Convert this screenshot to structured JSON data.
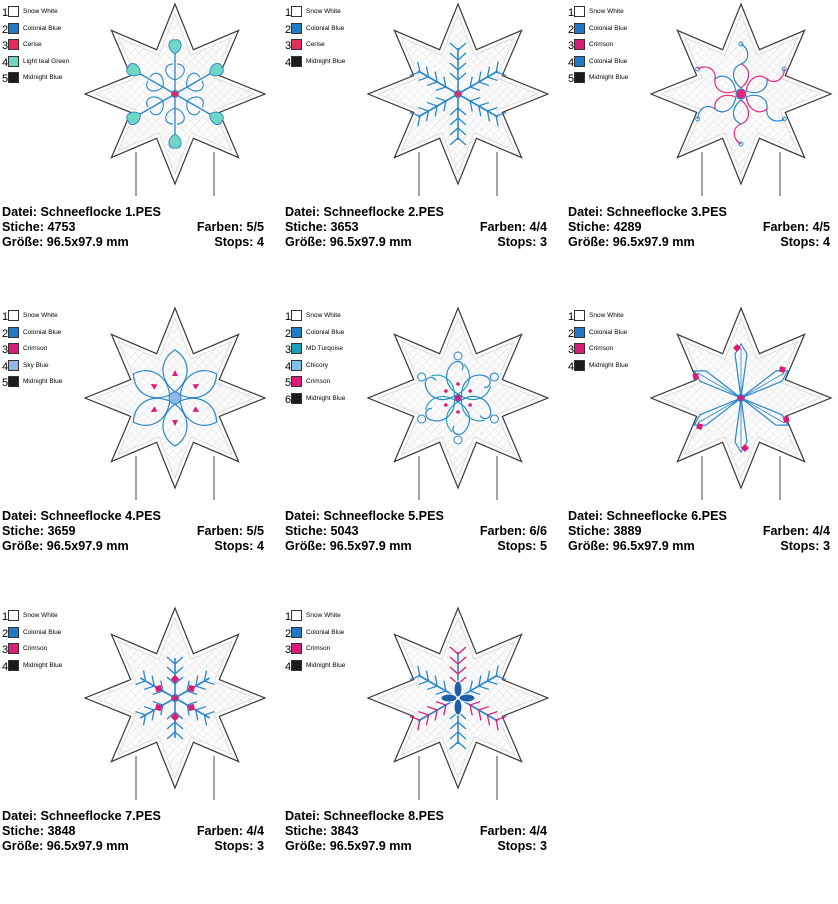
{
  "designs": [
    {
      "file": "Datei: Schneeflocke 1.PES",
      "stitches": "Stiche: 4753",
      "colors_count": "Farben: 5/5",
      "size": "Größe: 96.5x97.9 mm",
      "stops": "Stops: 4",
      "motif": "snowflake-hearts",
      "accent": "#e8246e",
      "thread_colors": [
        {
          "num": "1",
          "name": "Snow White",
          "hex": "#ffffff"
        },
        {
          "num": "2",
          "name": "Colonial Blue",
          "hex": "#1f78c8"
        },
        {
          "num": "3",
          "name": "Cerise",
          "hex": "#e32e5a"
        },
        {
          "num": "4",
          "name": "Light teal Green",
          "hex": "#6fd6c4"
        },
        {
          "num": "5",
          "name": "Midnight Blue",
          "hex": "#1e1a1c"
        }
      ]
    },
    {
      "file": "Datei: Schneeflocke 2.PES",
      "stitches": "Stiche: 3653",
      "colors_count": "Farben: 4/4",
      "size": "Größe: 96.5x97.9 mm",
      "stops": "Stops: 3",
      "motif": "snowflake-simple",
      "accent": "#e32e5a",
      "thread_colors": [
        {
          "num": "1",
          "name": "Snow White",
          "hex": "#ffffff"
        },
        {
          "num": "2",
          "name": "Colonial Blue",
          "hex": "#1f78c8"
        },
        {
          "num": "3",
          "name": "Cerise",
          "hex": "#e32e5a"
        },
        {
          "num": "4",
          "name": "Midnight Blue",
          "hex": "#1e1a1c"
        }
      ]
    },
    {
      "file": "Datei: Schneeflocke 3.PES",
      "stitches": "Stiche: 4289",
      "colors_count": "Farben: 4/5",
      "size": "Größe: 96.5x97.9 mm",
      "stops": "Stops: 4",
      "motif": "snowflake-swirl",
      "accent": "#e8247c",
      "thread_colors": [
        {
          "num": "1",
          "name": "Snow White",
          "hex": "#ffffff"
        },
        {
          "num": "2",
          "name": "Colonial Blue",
          "hex": "#1f78c8"
        },
        {
          "num": "3",
          "name": "Crimson",
          "hex": "#d81e78"
        },
        {
          "num": "4",
          "name": "Colonial Blue",
          "hex": "#1f78c8"
        },
        {
          "num": "5",
          "name": "Midnight Blue",
          "hex": "#1e1a1c"
        }
      ]
    },
    {
      "file": "Datei: Schneeflocke 4.PES",
      "stitches": "Stiche: 3659",
      "colors_count": "Farben: 5/5",
      "size": "Größe: 96.5x97.9 mm",
      "stops": "Stops: 4",
      "motif": "snowflake-petals",
      "accent": "#d81e78",
      "thread_colors": [
        {
          "num": "1",
          "name": "Snow White",
          "hex": "#ffffff"
        },
        {
          "num": "2",
          "name": "Colonial Blue",
          "hex": "#1f78c8"
        },
        {
          "num": "3",
          "name": "Crimson",
          "hex": "#d81e78"
        },
        {
          "num": "4",
          "name": "Sky Blue",
          "hex": "#8fb8e6"
        },
        {
          "num": "5",
          "name": "Midnight Blue",
          "hex": "#1e1a1c"
        }
      ]
    },
    {
      "file": "Datei: Schneeflocke 5.PES",
      "stitches": "Stiche: 5043",
      "colors_count": "Farben: 6/6",
      "size": "Größe: 96.5x97.9 mm",
      "stops": "Stops: 5",
      "motif": "snowflake-lace",
      "accent": "#d81e78",
      "thread_colors": [
        {
          "num": "1",
          "name": "Snow White",
          "hex": "#ffffff"
        },
        {
          "num": "2",
          "name": "Colonial Blue",
          "hex": "#1f78c8"
        },
        {
          "num": "3",
          "name": "MD Turqoise",
          "hex": "#1aa0b4"
        },
        {
          "num": "4",
          "name": "Chicory",
          "hex": "#7ec3e8"
        },
        {
          "num": "5",
          "name": "Crimson",
          "hex": "#d81e78"
        },
        {
          "num": "6",
          "name": "Midnight Blue",
          "hex": "#1e1a1c"
        }
      ]
    },
    {
      "file": "Datei: Schneeflocke 6.PES",
      "stitches": "Stiche: 3889",
      "colors_count": "Farben: 4/4",
      "size": "Größe: 96.5x97.9 mm",
      "stops": "Stops: 3",
      "motif": "snowflake-star",
      "accent": "#d81e78",
      "thread_colors": [
        {
          "num": "1",
          "name": "Snow White",
          "hex": "#ffffff"
        },
        {
          "num": "2",
          "name": "Colonial Blue",
          "hex": "#1f78c8"
        },
        {
          "num": "3",
          "name": "Crimson",
          "hex": "#d81e78"
        },
        {
          "num": "4",
          "name": "Midnight Blue",
          "hex": "#1e1a1c"
        }
      ]
    },
    {
      "file": "Datei: Schneeflocke 7.PES",
      "stitches": "Stiche: 3848",
      "colors_count": "Farben: 4/4",
      "size": "Größe: 96.5x97.9 mm",
      "stops": "Stops: 3",
      "motif": "snowflake-fern",
      "accent": "#d81e78",
      "thread_colors": [
        {
          "num": "1",
          "name": "Snow White",
          "hex": "#ffffff"
        },
        {
          "num": "2",
          "name": "Colonial Blue",
          "hex": "#1f78c8"
        },
        {
          "num": "3",
          "name": "Crimson",
          "hex": "#d81e78"
        },
        {
          "num": "4",
          "name": "Midnight Blue",
          "hex": "#1e1a1c"
        }
      ]
    },
    {
      "file": "Datei: Schneeflocke 8.PES",
      "stitches": "Stiche: 3843",
      "colors_count": "Farben: 4/4",
      "size": "Größe: 96.5x97.9 mm",
      "stops": "Stops: 3",
      "motif": "snowflake-branches",
      "accent": "#d81e78",
      "thread_colors": [
        {
          "num": "1",
          "name": "Snow White",
          "hex": "#ffffff"
        },
        {
          "num": "2",
          "name": "Colonial Blue",
          "hex": "#1f78c8"
        },
        {
          "num": "3",
          "name": "Crimson",
          "hex": "#d81e78"
        },
        {
          "num": "4",
          "name": "Midnight Blue",
          "hex": "#1e1a1c"
        }
      ]
    }
  ]
}
